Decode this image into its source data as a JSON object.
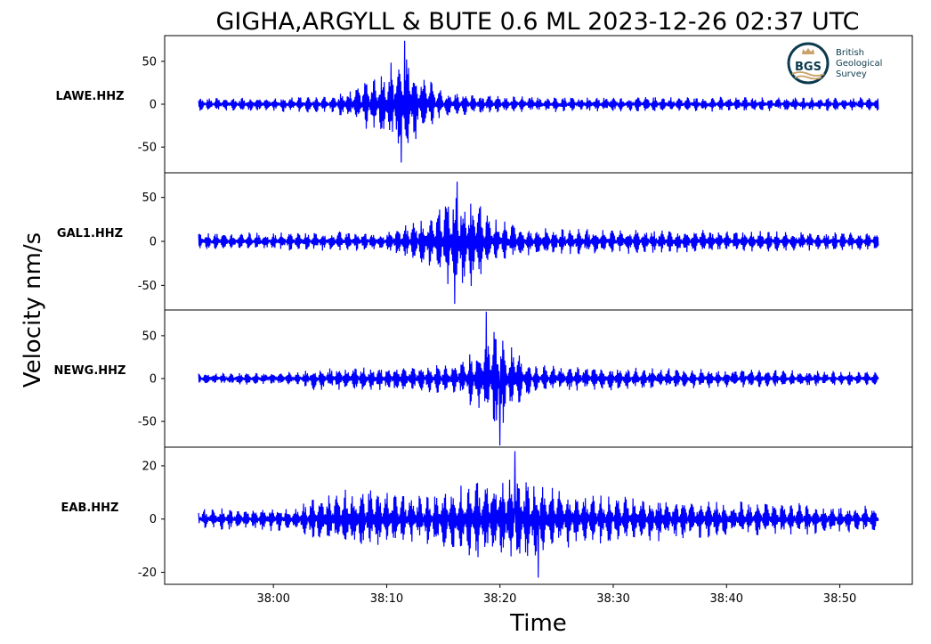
{
  "title": "GIGHA,ARGYLL & BUTE 0.6 ML   2023-12-26 02:37 UTC",
  "logo": {
    "monogram": "BGS",
    "lines": [
      "British",
      "Geological",
      "Survey"
    ],
    "colors": {
      "navy": "#0b3b4d",
      "gold": "#c9a26a"
    }
  },
  "chart_data": {
    "type": "line",
    "ylabel": "Velocity nm/s",
    "xlabel": "Time",
    "x_tick_labels": [
      "38:00",
      "38:10",
      "38:20",
      "38:30",
      "38:40",
      "38:50"
    ],
    "x_ticks_seconds": [
      0,
      10,
      20,
      30,
      40,
      50
    ],
    "x_data_range_seconds": [
      -6.6,
      53.4
    ],
    "xlim_seconds": [
      -9.6,
      56.4
    ],
    "line_color": "#0000ff",
    "panels": [
      {
        "name": "LAWE.HHZ",
        "ylim": [
          -80,
          80
        ],
        "y_ticks": [
          50,
          0,
          -50
        ],
        "y_tick_labels": [
          "50",
          "0",
          "-50"
        ],
        "envelope": [
          [
            -6.6,
            8
          ],
          [
            5,
            10
          ],
          [
            7.5,
            22
          ],
          [
            9.5,
            45
          ],
          [
            11.5,
            65
          ],
          [
            13,
            40
          ],
          [
            15,
            16
          ],
          [
            20,
            10
          ],
          [
            53.4,
            8
          ]
        ],
        "peaks": [
          [
            11.6,
            74
          ],
          [
            11.3,
            -68
          ]
        ]
      },
      {
        "name": "GAL1.HHZ",
        "ylim": [
          -78,
          78
        ],
        "y_ticks": [
          50,
          0,
          -50
        ],
        "y_tick_labels": [
          "50",
          "0",
          "-50"
        ],
        "envelope": [
          [
            -6.6,
            10
          ],
          [
            10,
            12
          ],
          [
            13.5,
            30
          ],
          [
            16,
            62
          ],
          [
            18,
            50
          ],
          [
            20,
            24
          ],
          [
            23,
            16
          ],
          [
            53.4,
            10
          ]
        ],
        "peaks": [
          [
            16.2,
            68
          ],
          [
            16.0,
            -71
          ]
        ]
      },
      {
        "name": "NEWG.HHZ",
        "ylim": [
          -80,
          80
        ],
        "y_ticks": [
          50,
          0,
          -50
        ],
        "y_tick_labels": [
          "50",
          "0",
          "-50"
        ],
        "envelope": [
          [
            -6.6,
            8
          ],
          [
            2.5,
            8
          ],
          [
            3.5,
            14
          ],
          [
            6,
            14
          ],
          [
            16,
            18
          ],
          [
            18,
            38
          ],
          [
            19.5,
            65
          ],
          [
            21,
            40
          ],
          [
            23,
            16
          ],
          [
            53.4,
            8
          ]
        ],
        "peaks": [
          [
            18.8,
            78
          ],
          [
            20.0,
            -78
          ]
        ]
      },
      {
        "name": "EAB.HHZ",
        "ylim": [
          -24.5,
          27
        ],
        "y_ticks": [
          20,
          0,
          -20
        ],
        "y_tick_labels": [
          "20",
          "0",
          "-20"
        ],
        "envelope": [
          [
            -6.6,
            4
          ],
          [
            2,
            5
          ],
          [
            4,
            10
          ],
          [
            8,
            12
          ],
          [
            13,
            9
          ],
          [
            16,
            13
          ],
          [
            20,
            18
          ],
          [
            23,
            15
          ],
          [
            27,
            10
          ],
          [
            40,
            7
          ],
          [
            53.4,
            5
          ]
        ],
        "peaks": [
          [
            21.3,
            25.5
          ],
          [
            23.4,
            -22
          ]
        ]
      }
    ]
  }
}
